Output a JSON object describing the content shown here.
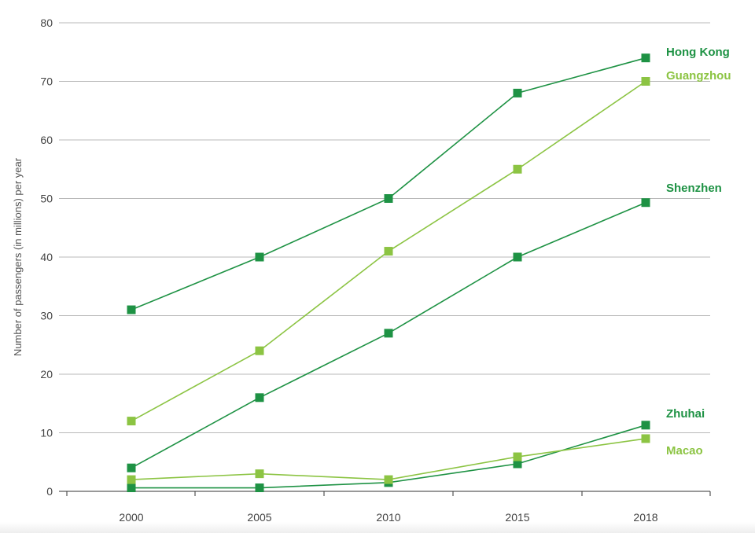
{
  "chart_data": {
    "type": "line",
    "ylabel": "Number of passengers (in millions) per year",
    "xlabel": "",
    "ylim": [
      0,
      80
    ],
    "y_ticks": [
      0,
      10,
      20,
      30,
      40,
      50,
      60,
      70,
      80
    ],
    "categories": [
      "2000",
      "2005",
      "2010",
      "2015",
      "2018"
    ],
    "grid": "horizontal",
    "legend": "inline labels at right end of lines",
    "series": [
      {
        "name": "Hong Kong",
        "color": "#1e9244",
        "values": [
          31,
          40,
          50,
          68,
          74
        ]
      },
      {
        "name": "Guangzhou",
        "color": "#8cc443",
        "values": [
          12,
          24,
          41,
          55,
          70
        ]
      },
      {
        "name": "Shenzhen",
        "color": "#1e9244",
        "values": [
          4,
          16,
          27,
          40,
          49.3
        ]
      },
      {
        "name": "Zhuhai",
        "color": "#1e9244",
        "values": [
          0.6,
          0.6,
          1.5,
          4.7,
          11.3
        ]
      },
      {
        "name": "Macao",
        "color": "#8cc443",
        "values": [
          2,
          3,
          2,
          5.9,
          9
        ]
      }
    ]
  }
}
